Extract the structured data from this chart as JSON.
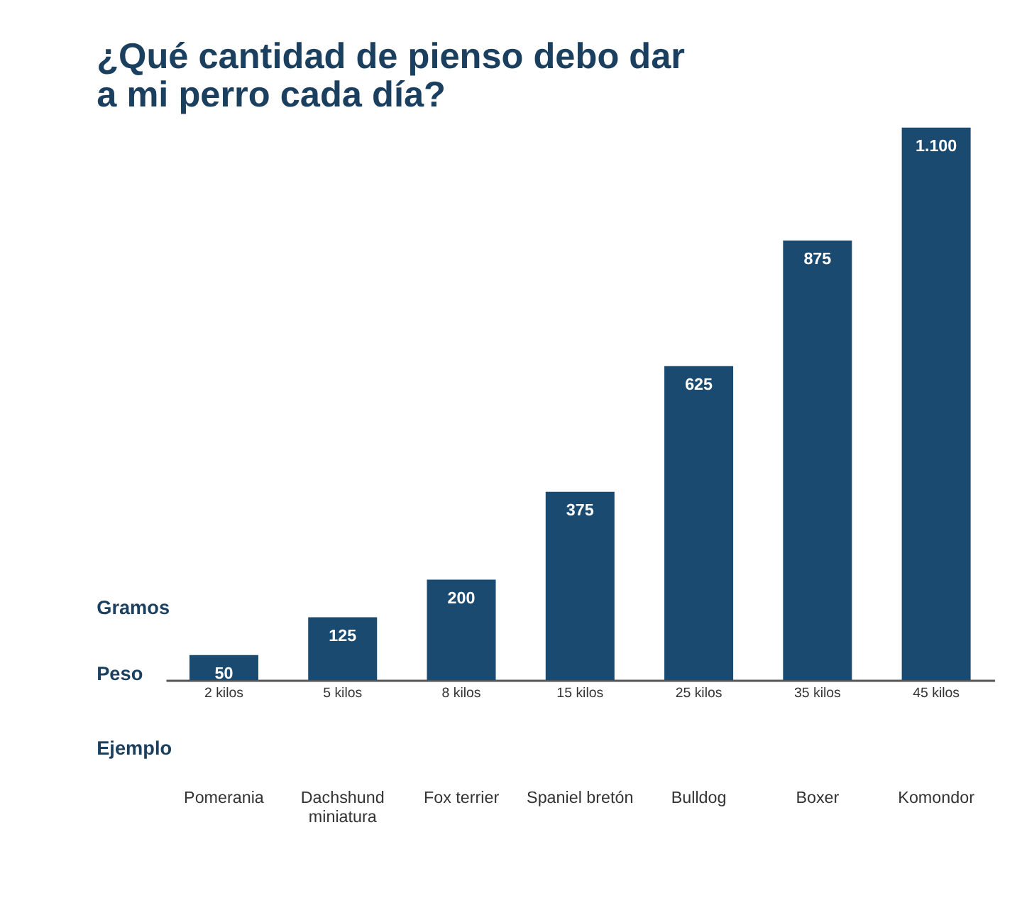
{
  "chart_data": {
    "type": "bar",
    "title": "¿Qué cantidad de pienso debo dar a mi perro cada día?",
    "ylabel": "Gramos",
    "xlabel": "Peso",
    "categories": [
      "2 kilos",
      "5 kilos",
      "8 kilos",
      "15 kilos",
      "25 kilos",
      "35 kilos",
      "45 kilos"
    ],
    "values": [
      50,
      125,
      200,
      375,
      625,
      875,
      1100
    ],
    "value_labels": [
      "50",
      "125",
      "200",
      "375",
      "625",
      "875",
      "1.100"
    ],
    "color": "#1b4a70",
    "grid": false,
    "annotations": [
      "Ejemplo",
      "Pomerania",
      "Dachshund miniatura",
      "Fox terrier",
      "Spaniel bretón",
      "Bulldog",
      "Boxer",
      "Komondor"
    ]
  }
}
